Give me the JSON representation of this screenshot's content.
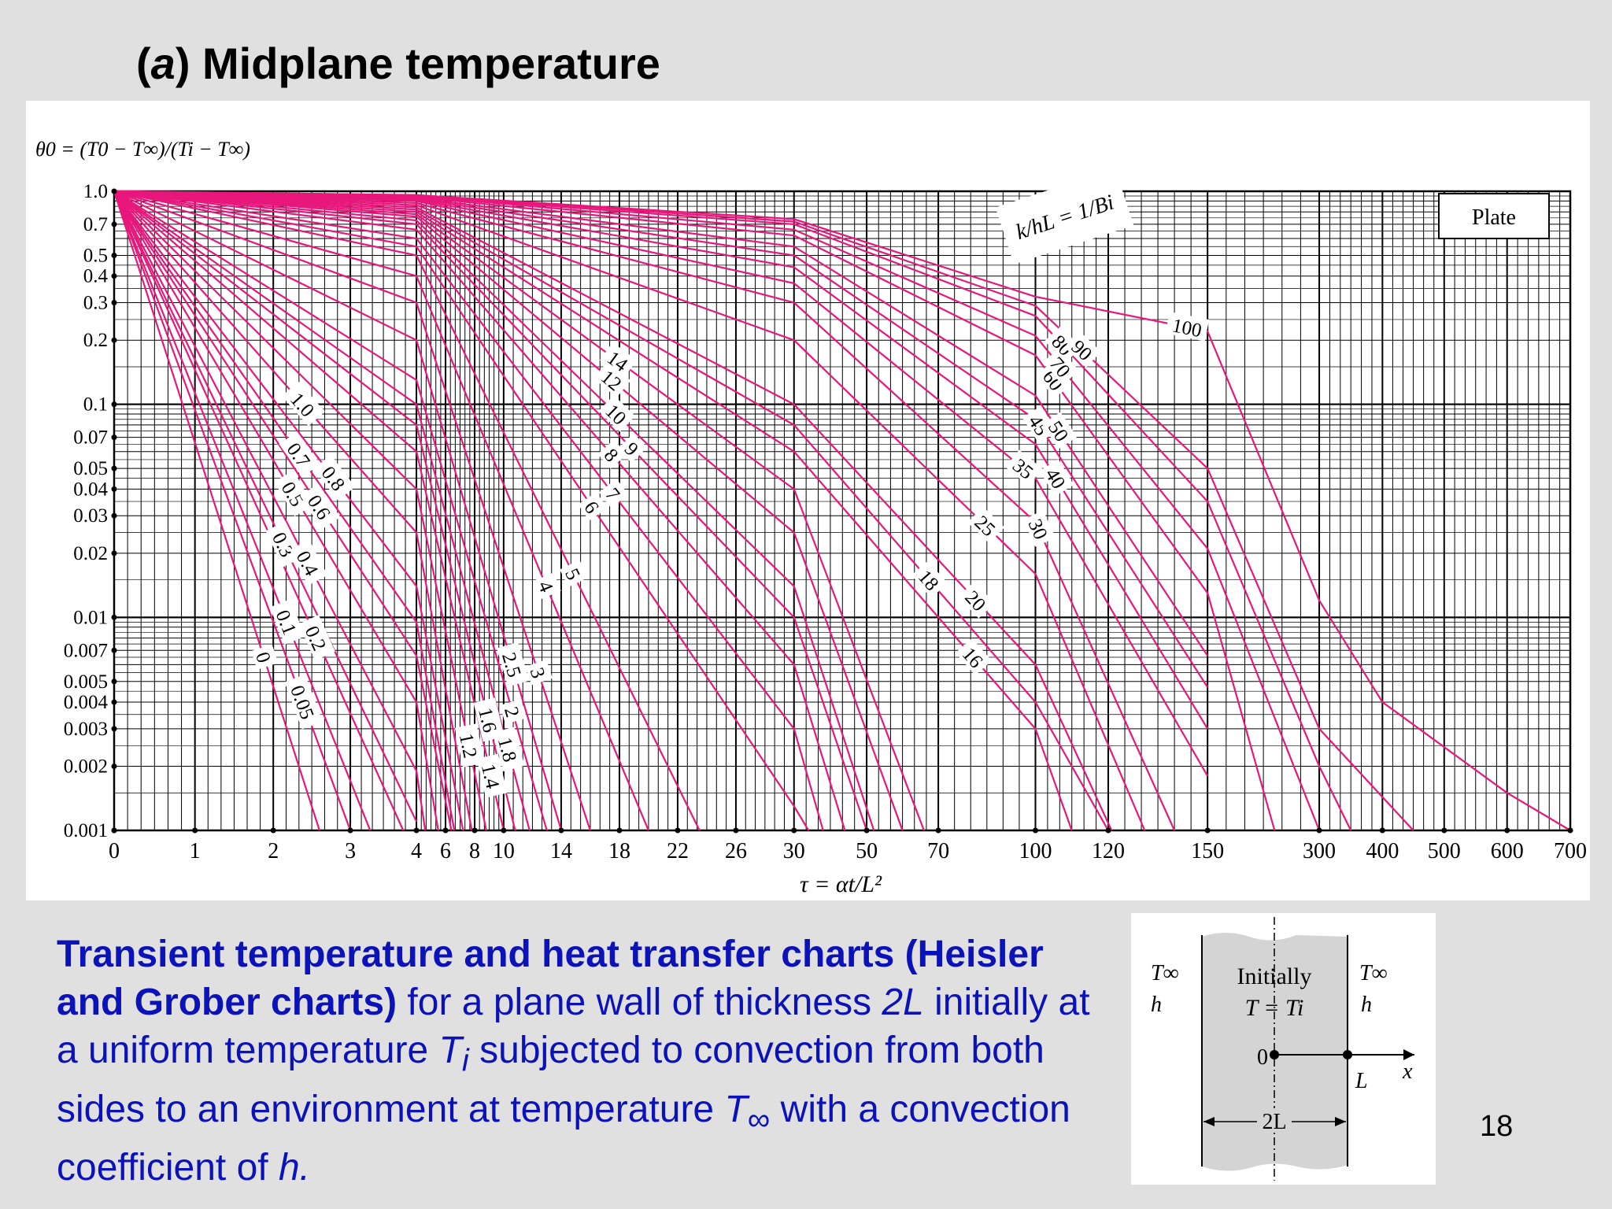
{
  "slide": {
    "title_prefix": "(",
    "title_italic": "a",
    "title_suffix": ") Midplane temperature",
    "page_number": "18"
  },
  "caption": {
    "bold": "Transient temperature and heat transfer charts (Heisler and Grober charts)",
    "part1": " for a plane wall of thickness ",
    "var_2L": "2L",
    "part2": " initially at a uniform temperature ",
    "var_T": "T",
    "sub_i": "i",
    "part3": " subjected to convection from both sides to an environment at temperature ",
    "var_Tinf": "T",
    "sub_inf": "∞",
    "part4": " with a convection coefficient of ",
    "var_h": "h.",
    "part5": ""
  },
  "inset": {
    "t_inf_left": "T∞",
    "h_left": "h",
    "t_inf_right": "T∞",
    "h_right": "h",
    "initially": "Initially",
    "t_equals": "T = Ti",
    "origin": "0",
    "L": "L",
    "x": "x",
    "two_L": "2L"
  },
  "colors": {
    "curve": "#e8177b",
    "caption_blue": "#0b12b8",
    "grid": "#000000"
  },
  "chart_data": {
    "type": "line",
    "y_scale": "log",
    "x_scale": "piecewise-linear",
    "ylabel": "θ0 = (T0 − T∞)/(Ti − T∞)",
    "xlabel": "τ = αt/L²",
    "legend_box": "Plate",
    "param_label": "k/hL = 1/Bi",
    "ylim": [
      0.001,
      1.0
    ],
    "grid": true,
    "y_ticks": [
      "1.0",
      "0.7",
      "0.5",
      "0.4",
      "0.3",
      "0.2",
      "0.1",
      "0.07",
      "0.05",
      "0.04",
      "0.03",
      "0.02",
      "0.01",
      "0.007",
      "0.005",
      "0.004",
      "0.003",
      "0.002",
      "0.001"
    ],
    "x_ticks": [
      "0",
      "1",
      "2",
      "3",
      "4",
      "6",
      "8",
      "10",
      "14",
      "18",
      "22",
      "26",
      "30",
      "50",
      "70",
      "100",
      "120",
      "150",
      "300",
      "400",
      "500",
      "600",
      "700"
    ],
    "series": [
      {
        "name": "0",
        "x": [
          0,
          2.6
        ],
        "y": [
          1.0,
          0.001
        ]
      },
      {
        "name": "0.05",
        "x": [
          0,
          3.0
        ],
        "y": [
          1.0,
          0.001
        ]
      },
      {
        "name": "0.1",
        "x": [
          0,
          3.3
        ],
        "y": [
          1.0,
          0.001
        ]
      },
      {
        "name": "0.2",
        "x": [
          0,
          3.8
        ],
        "y": [
          1.0,
          0.001
        ]
      },
      {
        "name": "0.3",
        "x": [
          0,
          4
        ],
        "y": [
          1.0,
          0.0011
        ]
      },
      {
        "name": "0.4",
        "x": [
          0,
          4,
          4.6
        ],
        "y": [
          1.0,
          0.0019,
          0.001
        ]
      },
      {
        "name": "0.5",
        "x": [
          0,
          4,
          5.5
        ],
        "y": [
          1.0,
          0.004,
          0.001
        ]
      },
      {
        "name": "0.6",
        "x": [
          0,
          4,
          6.4
        ],
        "y": [
          1.0,
          0.0066,
          0.001
        ]
      },
      {
        "name": "0.7",
        "x": [
          0,
          4,
          6.6
        ],
        "y": [
          1.0,
          0.0095,
          0.001
        ]
      },
      {
        "name": "0.8",
        "x": [
          0,
          4,
          7.2
        ],
        "y": [
          1.0,
          0.014,
          0.001
        ]
      },
      {
        "name": "1.0",
        "x": [
          0,
          4,
          7.8
        ],
        "y": [
          1.0,
          0.025,
          0.001
        ]
      },
      {
        "name": "1.2",
        "x": [
          0,
          4,
          8.8
        ],
        "y": [
          1.0,
          0.04,
          0.001
        ]
      },
      {
        "name": "1.4",
        "x": [
          0,
          4,
          10
        ],
        "y": [
          1.0,
          0.06,
          0.001
        ]
      },
      {
        "name": "1.6",
        "x": [
          0,
          4,
          10.8
        ],
        "y": [
          1.0,
          0.08,
          0.001
        ]
      },
      {
        "name": "1.8",
        "x": [
          0,
          4,
          11.8
        ],
        "y": [
          1.0,
          0.1,
          0.001
        ]
      },
      {
        "name": "2",
        "x": [
          0,
          4,
          13
        ],
        "y": [
          1.0,
          0.13,
          0.001
        ]
      },
      {
        "name": "2.5",
        "x": [
          0,
          4,
          14
        ],
        "y": [
          1.0,
          0.2,
          0.001
        ]
      },
      {
        "name": "3",
        "x": [
          0,
          4,
          16
        ],
        "y": [
          1.0,
          0.3,
          0.001
        ]
      },
      {
        "name": "4",
        "x": [
          0,
          4,
          20
        ],
        "y": [
          1.0,
          0.4,
          0.001
        ]
      },
      {
        "name": "5",
        "x": [
          0,
          4,
          23.5
        ],
        "y": [
          1.0,
          0.5,
          0.001
        ]
      },
      {
        "name": "6",
        "x": [
          0,
          4,
          30,
          34
        ],
        "y": [
          1.0,
          0.55,
          0.0013,
          0.001
        ]
      },
      {
        "name": "7",
        "x": [
          0,
          4,
          30,
          38
        ],
        "y": [
          1.0,
          0.6,
          0.003,
          0.001
        ]
      },
      {
        "name": "8",
        "x": [
          0,
          4,
          30,
          44
        ],
        "y": [
          1.0,
          0.66,
          0.006,
          0.001
        ]
      },
      {
        "name": "9",
        "x": [
          0,
          4,
          30,
          50
        ],
        "y": [
          1.0,
          0.7,
          0.01,
          0.001
        ]
      },
      {
        "name": "10",
        "x": [
          0,
          4,
          30,
          52
        ],
        "y": [
          1.0,
          0.73,
          0.014,
          0.001
        ]
      },
      {
        "name": "12",
        "x": [
          0,
          4,
          30,
          60
        ],
        "y": [
          1.0,
          0.76,
          0.025,
          0.001
        ]
      },
      {
        "name": "14",
        "x": [
          0,
          4,
          30,
          66
        ],
        "y": [
          1.0,
          0.78,
          0.04,
          0.001
        ]
      },
      {
        "name": "16",
        "x": [
          0,
          4,
          30,
          100,
          110
        ],
        "y": [
          1.0,
          0.8,
          0.06,
          0.003,
          0.001
        ]
      },
      {
        "name": "18",
        "x": [
          0,
          4,
          30,
          100,
          120
        ],
        "y": [
          1.0,
          0.82,
          0.08,
          0.004,
          0.001
        ]
      },
      {
        "name": "20",
        "x": [
          0,
          4,
          30,
          100,
          121
        ],
        "y": [
          1.0,
          0.84,
          0.1,
          0.006,
          0.001
        ]
      },
      {
        "name": "25",
        "x": [
          0,
          4,
          30,
          100,
          131
        ],
        "y": [
          1.0,
          0.86,
          0.2,
          0.016,
          0.001
        ]
      },
      {
        "name": "30",
        "x": [
          0,
          4,
          30,
          100,
          140
        ],
        "y": [
          1.0,
          0.88,
          0.3,
          0.028,
          0.001
        ]
      },
      {
        "name": "35",
        "x": [
          0,
          4,
          30,
          100,
          150
        ],
        "y": [
          1.0,
          0.9,
          0.37,
          0.045,
          0.0018
        ]
      },
      {
        "name": "40",
        "x": [
          0,
          4,
          30,
          100,
          150
        ],
        "y": [
          1.0,
          0.91,
          0.44,
          0.065,
          0.003
        ]
      },
      {
        "name": "45",
        "x": [
          0,
          4,
          30,
          100,
          150
        ],
        "y": [
          1.0,
          0.92,
          0.5,
          0.085,
          0.0047
        ]
      },
      {
        "name": "50",
        "x": [
          0,
          4,
          30,
          100,
          150
        ],
        "y": [
          1.0,
          0.93,
          0.55,
          0.11,
          0.0066
        ]
      },
      {
        "name": "60",
        "x": [
          0,
          4,
          30,
          100,
          150,
          240
        ],
        "y": [
          1.0,
          0.94,
          0.62,
          0.17,
          0.013,
          0.001
        ]
      },
      {
        "name": "70",
        "x": [
          0,
          4,
          30,
          100,
          150,
          300
        ],
        "y": [
          1.0,
          0.95,
          0.66,
          0.21,
          0.021,
          0.001
        ]
      },
      {
        "name": "80",
        "x": [
          0,
          4,
          30,
          100,
          150,
          300,
          350
        ],
        "y": [
          1.0,
          0.95,
          0.7,
          0.26,
          0.035,
          0.002,
          0.001
        ]
      },
      {
        "name": "90",
        "x": [
          0,
          4,
          30,
          100,
          150,
          300,
          450
        ],
        "y": [
          1.0,
          0.96,
          0.72,
          0.29,
          0.05,
          0.003,
          0.001
        ]
      },
      {
        "name": "100",
        "x": [
          0,
          4,
          30,
          100,
          150,
          300,
          400,
          600,
          700
        ],
        "y": [
          1.0,
          0.96,
          0.74,
          0.32,
          0.22,
          0.012,
          0.004,
          0.0015,
          0.001
        ]
      }
    ]
  }
}
